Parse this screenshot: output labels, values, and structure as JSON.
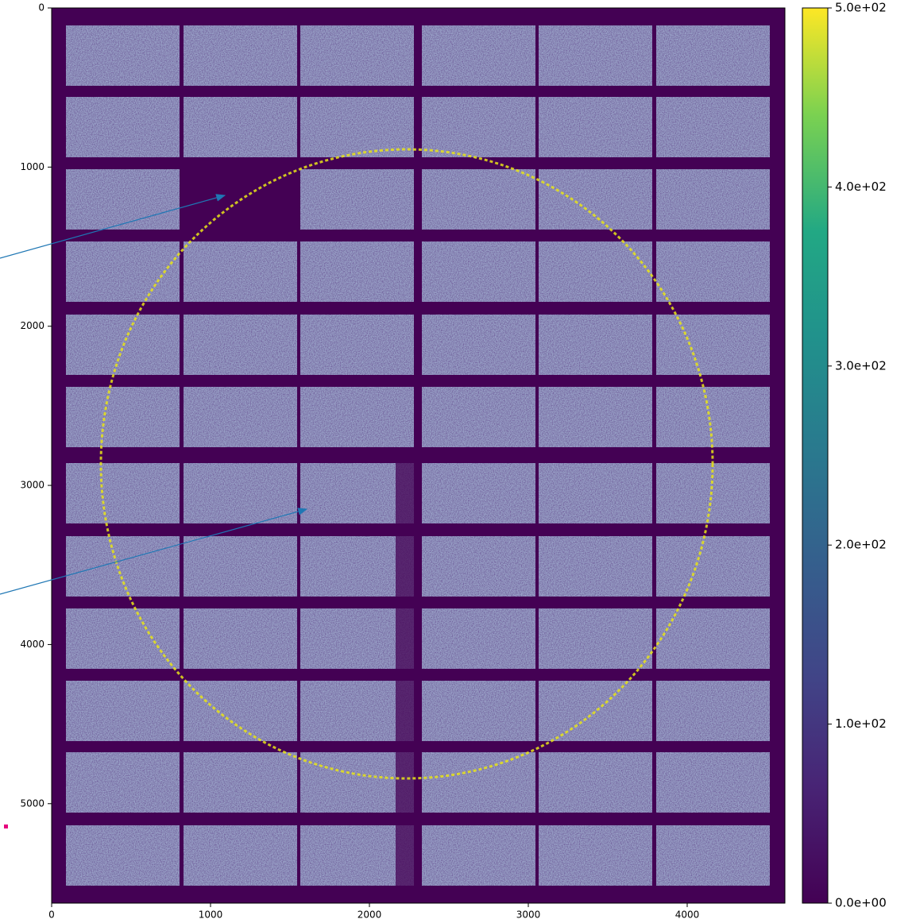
{
  "chart_data": {
    "type": "image",
    "xlim": [
      0,
      4615
    ],
    "xticks": [
      0,
      1000,
      2000,
      3000,
      4000
    ],
    "ylim": [
      5625,
      0
    ],
    "yticks": [
      0,
      1000,
      2000,
      3000,
      4000,
      5000
    ],
    "colormap": "viridis",
    "colorbar": {
      "lim": [
        0,
        500
      ],
      "ticks": [
        {
          "value": 0,
          "label": "0.0e+00"
        },
        {
          "value": 100,
          "label": "1.0e+02"
        },
        {
          "value": 200,
          "label": "2.0e+02"
        },
        {
          "value": 300,
          "label": "3.0e+02"
        },
        {
          "value": 400,
          "label": "4.0e+02"
        },
        {
          "value": 500,
          "label": "5.0e+02"
        }
      ]
    }
  }
}
